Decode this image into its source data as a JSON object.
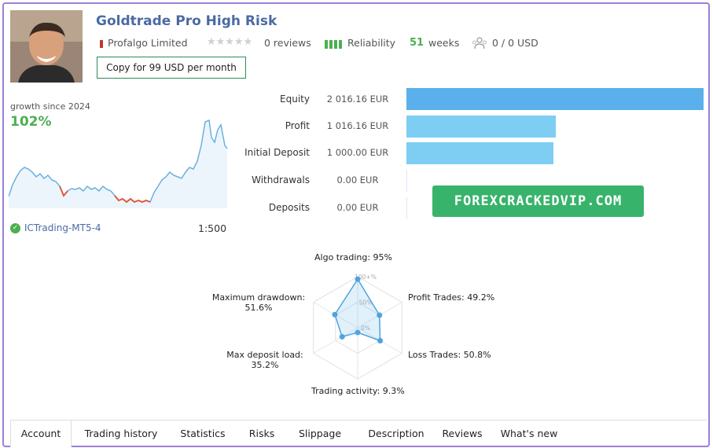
{
  "header": {
    "title": "Goldtrade Pro High Risk",
    "company": "Profalgo Limited",
    "reviews": "0 reviews",
    "reliability": "Reliability",
    "weeks_value": "51",
    "weeks_label": "weeks",
    "subscribers": "0 / 0 USD",
    "copy_button": "Copy for 99 USD per month"
  },
  "growth": {
    "label": "growth since 2024",
    "value": "102%",
    "broker": "ICTrading-MT5-4",
    "leverage": "1:500"
  },
  "metrics": [
    {
      "label": "Equity",
      "value": "2 016.16 EUR",
      "amount": 2016.16
    },
    {
      "label": "Profit",
      "value": "1 016.16 EUR",
      "amount": 1016.16
    },
    {
      "label": "Initial Deposit",
      "value": "1 000.00 EUR",
      "amount": 1000.0
    },
    {
      "label": "Withdrawals",
      "value": "0.00 EUR",
      "amount": 0
    },
    {
      "label": "Deposits",
      "value": "0.00 EUR",
      "amount": 0
    }
  ],
  "watermark": "FOREXCRACKEDVIP.COM",
  "radar": {
    "axes": [
      {
        "label": "Algo trading: 95%",
        "value": 95
      },
      {
        "label": "Profit Trades: 49.2%",
        "value": 49.2
      },
      {
        "label": "Loss Trades: 50.8%",
        "value": 50.8
      },
      {
        "label": "Trading activity: 9.3%",
        "value": 9.3
      },
      {
        "label": "Max deposit load:",
        "label2": "35.2%",
        "value": 35.2
      },
      {
        "label": "Maximum drawdown:",
        "label2": "51.6%",
        "value": 51.6
      }
    ],
    "ticks": [
      "100+%",
      "50%",
      "0%"
    ]
  },
  "tabs": [
    "Account",
    "Trading history",
    "Statistics",
    "Risks",
    "Slippage",
    "Description",
    "Reviews",
    "What's new"
  ],
  "colors": {
    "accent": "#4b6aa3",
    "green": "#4caf50",
    "bar": "#6bbbf0",
    "line": "#6ab0e0",
    "drawdown": "#e05a3a",
    "watermark_bg": "#38b36b"
  }
}
